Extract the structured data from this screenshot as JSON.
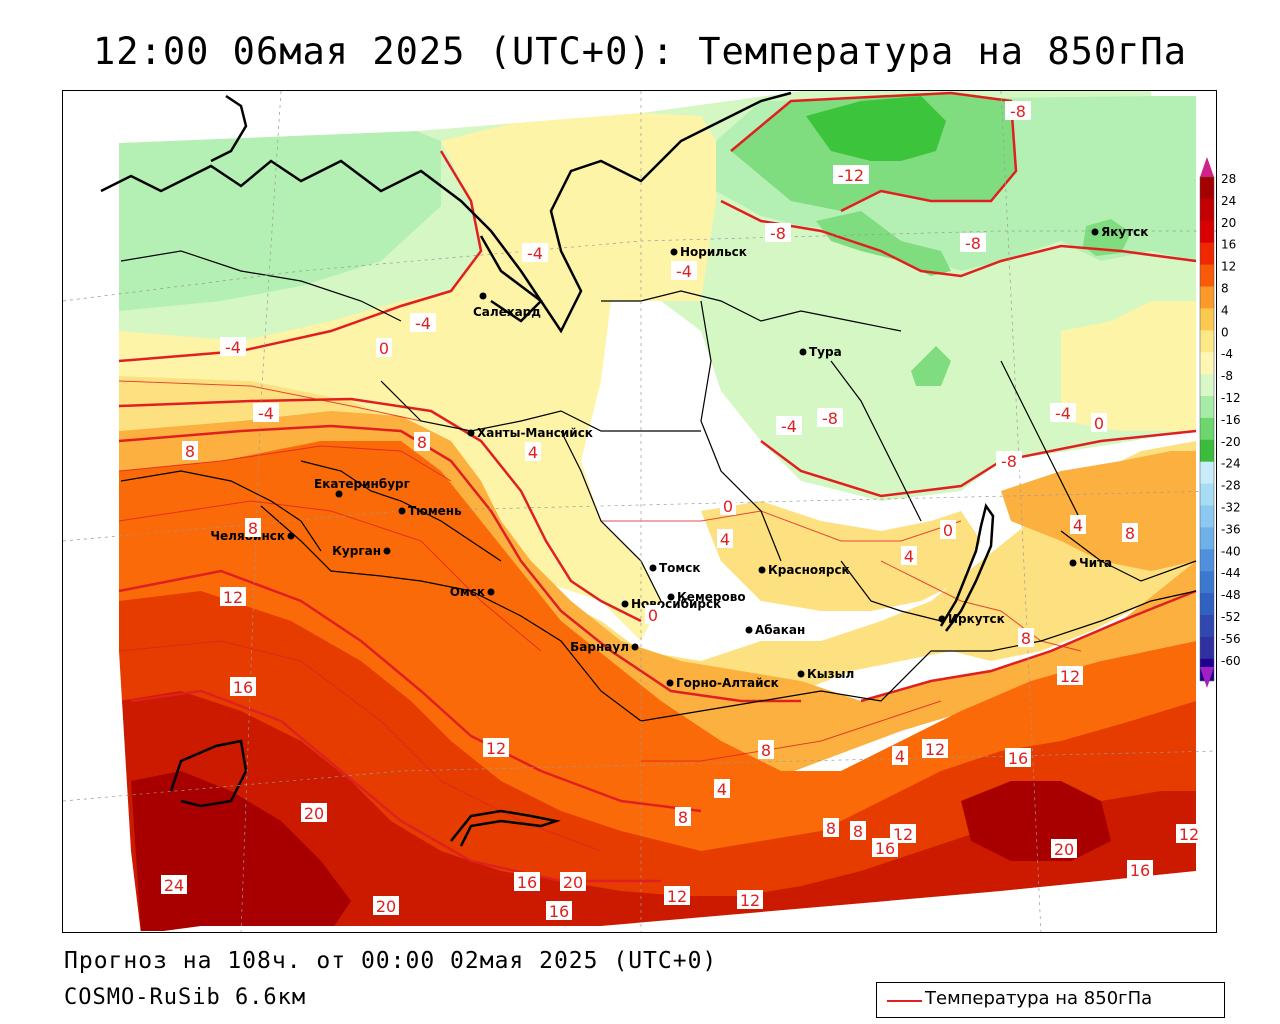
{
  "title": "12:00 06мая 2025 (UTC+0): Температура на 850гПа",
  "footer": {
    "forecast": "Прогноз на 108ч. от 00:00 02мая 2025 (UTC+0)",
    "model": "COSMO-RuSib 6.6км"
  },
  "legend": {
    "label": "Температура на 850гПа",
    "color": "#e02020"
  },
  "colors": {
    "g12": "#3dc43d",
    "g8": "#7fdc7f",
    "g4": "#b4f0b4",
    "g0": "#d4f7c4",
    "y0": "#fdf4a8",
    "y4": "#fde080",
    "o8": "#fbb040",
    "o12": "#fb6a08",
    "r16": "#e63c00",
    "r20": "#cc1a00",
    "r24": "#a80000",
    "iso": "#e02020"
  },
  "colorbar": {
    "ticks": [
      "28",
      "24",
      "20",
      "16",
      "12",
      "8",
      "4",
      "0",
      "-4",
      "-8",
      "-12",
      "-16",
      "-20",
      "-24",
      "-28",
      "-32",
      "-36",
      "-40",
      "-44",
      "-48",
      "-52",
      "-56",
      "-60"
    ],
    "colors": [
      "#a40000",
      "#c20000",
      "#d80000",
      "#f02800",
      "#f85a08",
      "#fb9a28",
      "#fcc850",
      "#fde888",
      "#fdf6b4",
      "#d8f8c8",
      "#a6eba6",
      "#6ed66e",
      "#3cbc3c",
      "#c8ecfa",
      "#a8dcf4",
      "#8cc8f0",
      "#6eb0e8",
      "#5090dc",
      "#3c78d0",
      "#3060c0",
      "#3048b0",
      "#3030a0",
      "#200090"
    ],
    "top_arrow": "#d0208c",
    "bottom_arrow": "#a020c0"
  },
  "cities": [
    {
      "name": "Норильск"
    },
    {
      "name": "Якутск"
    },
    {
      "name": "Салехард"
    },
    {
      "name": "Тура"
    },
    {
      "name": "Ханты-Мансийск"
    },
    {
      "name": "Екатеринбург"
    },
    {
      "name": "Тюмень"
    },
    {
      "name": "Челябинск"
    },
    {
      "name": "Курган"
    },
    {
      "name": "Омск"
    },
    {
      "name": "Новосибирск"
    },
    {
      "name": "Томск"
    },
    {
      "name": "Кемерово"
    },
    {
      "name": "Красноярск"
    },
    {
      "name": "Абакан"
    },
    {
      "name": "Барнаул"
    },
    {
      "name": "Горно-Алтайск"
    },
    {
      "name": "Кызыл"
    },
    {
      "name": "Иркутск"
    },
    {
      "name": "Чита"
    }
  ],
  "isotherm_labels": [
    "-8",
    "-12",
    "-8",
    "-8",
    "-4",
    "-4",
    "-4",
    "-4",
    "0",
    "-4",
    "-8",
    "-4",
    "-4",
    "-8",
    "0",
    "4",
    "8",
    "8",
    "4",
    "0",
    "0",
    "4",
    "4",
    "8",
    "8",
    "12",
    "8",
    "16",
    "12",
    "20",
    "24",
    "20",
    "16",
    "20",
    "16",
    "12",
    "12",
    "4",
    "8",
    "12",
    "8",
    "8",
    "12",
    "16",
    "4",
    "8",
    "12",
    "16",
    "20",
    "16",
    "12",
    "0"
  ]
}
